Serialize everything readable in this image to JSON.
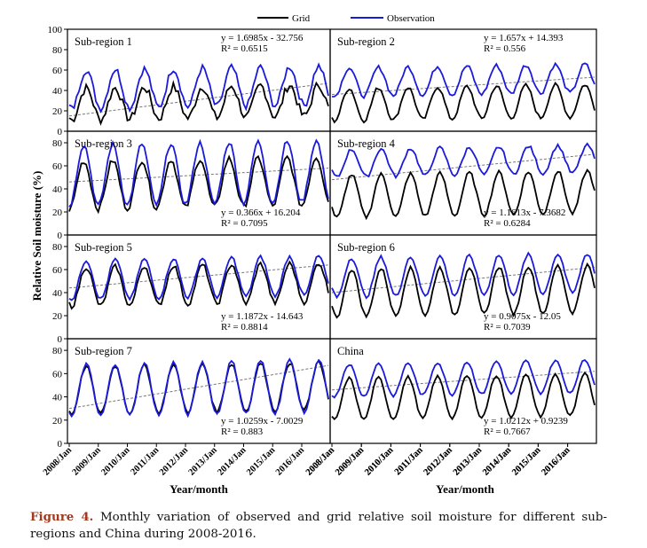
{
  "legend": {
    "grid_label": "Grid",
    "obs_label": "Observation",
    "grid_color": "#000000",
    "obs_color": "#1a1adb",
    "trend_color": "#777777"
  },
  "axes": {
    "ylabel": "Relative Soil moisture (%)",
    "xlabel": "Year/month",
    "xticks": [
      "2008/Jan",
      "2009/Jan",
      "2010/Jan",
      "2011/Jan",
      "2012/Jan",
      "2013/Jan",
      "2014/Jan",
      "2015/Jan",
      "2016/Jan"
    ],
    "first_panel_yticks": [
      "0",
      "20",
      "40",
      "60",
      "80",
      "100"
    ],
    "panel_yticks": [
      "0",
      "20",
      "40",
      "60",
      "80"
    ]
  },
  "caption": {
    "label": "Figure 4.",
    "text": " Monthly variation of observed and grid relative soil moisture for different sub-regions and China during 2008-2016."
  },
  "chart_data": [
    {
      "type": "line",
      "title": "Sub-region 1",
      "ylim": [
        0,
        100
      ],
      "equation": "y = 1.6985x - 32.756",
      "r2": "R² = 0.6515",
      "series": [
        {
          "name": "Grid",
          "min": 13,
          "max": 44,
          "seasonal_peak_month": 7,
          "noise": 9
        },
        {
          "name": "Observation",
          "min": 24,
          "max": 62,
          "seasonal_peak_month": 7,
          "noise": 7
        }
      ],
      "trend": {
        "start": 15,
        "end": 47
      }
    },
    {
      "type": "line",
      "title": "Sub-region 2",
      "ylim": [
        0,
        100
      ],
      "equation": "y = 1.657x + 14.393",
      "r2": "R² = 0.556",
      "series": [
        {
          "name": "Grid",
          "min": 12,
          "max": 44,
          "seasonal_peak_month": 7,
          "noise": 4
        },
        {
          "name": "Observation",
          "min": 36,
          "max": 64,
          "seasonal_peak_month": 7,
          "noise": 4
        }
      ],
      "trend": {
        "start": 36,
        "end": 53
      }
    },
    {
      "type": "line",
      "title": "Sub-region 3",
      "ylim": [
        0,
        90
      ],
      "equation": "y = 0.366x + 16.204",
      "r2": "R² = 0.7095",
      "series": [
        {
          "name": "Grid",
          "min": 24,
          "max": 66,
          "seasonal_peak_month": 6,
          "noise": 5
        },
        {
          "name": "Observation",
          "min": 27,
          "max": 80,
          "seasonal_peak_month": 6,
          "noise": 4
        }
      ],
      "trend": {
        "start": 46,
        "end": 58
      }
    },
    {
      "type": "line",
      "title": "Sub-region 4",
      "ylim": [
        0,
        90
      ],
      "equation": "y = 1.1613x - 7.3682",
      "r2": "R² = 0.6284",
      "series": [
        {
          "name": "Grid",
          "min": 17,
          "max": 54,
          "seasonal_peak_month": 8,
          "noise": 3
        },
        {
          "name": "Observation",
          "min": 52,
          "max": 76,
          "seasonal_peak_month": 8,
          "noise": 3
        }
      ],
      "trend": {
        "start": 48,
        "end": 70
      }
    },
    {
      "type": "line",
      "title": "Sub-region 5",
      "ylim": [
        0,
        90
      ],
      "equation": "y = 1.1872x - 14.643",
      "r2": "R² = 0.8814",
      "series": [
        {
          "name": "Grid",
          "min": 30,
          "max": 64,
          "seasonal_peak_month": 7,
          "noise": 4
        },
        {
          "name": "Observation",
          "min": 36,
          "max": 70,
          "seasonal_peak_month": 7,
          "noise": 3
        }
      ],
      "trend": {
        "start": 44,
        "end": 64
      }
    },
    {
      "type": "line",
      "title": "Sub-region 6",
      "ylim": [
        0,
        90
      ],
      "equation": "y = 0.9075x - 12.05",
      "r2": "R² = 0.7039",
      "series": [
        {
          "name": "Grid",
          "min": 21,
          "max": 62,
          "seasonal_peak_month": 8,
          "noise": 3
        },
        {
          "name": "Observation",
          "min": 38,
          "max": 72,
          "seasonal_peak_month": 8,
          "noise": 3
        }
      ],
      "trend": {
        "start": 40,
        "end": 62
      }
    },
    {
      "type": "line",
      "title": "Sub-region 7",
      "ylim": [
        0,
        90
      ],
      "equation": "y = 1.0259x - 7.0029",
      "r2": "R² = 0.883",
      "series": [
        {
          "name": "Grid",
          "min": 27,
          "max": 68,
          "seasonal_peak_month": 7,
          "noise": 3
        },
        {
          "name": "Observation",
          "min": 25,
          "max": 70,
          "seasonal_peak_month": 7,
          "noise": 3
        }
      ],
      "trend": {
        "start": 30,
        "end": 67
      }
    },
    {
      "type": "line",
      "title": "China",
      "ylim": [
        0,
        90
      ],
      "equation": "y = 1.0212x + 0.9239",
      "r2": "R² = 0.7667",
      "series": [
        {
          "name": "Grid",
          "min": 22,
          "max": 58,
          "seasonal_peak_month": 7,
          "noise": 2
        },
        {
          "name": "Observation",
          "min": 42,
          "max": 70,
          "seasonal_peak_month": 7,
          "noise": 2
        }
      ],
      "trend": {
        "start": 46,
        "end": 62
      }
    }
  ]
}
